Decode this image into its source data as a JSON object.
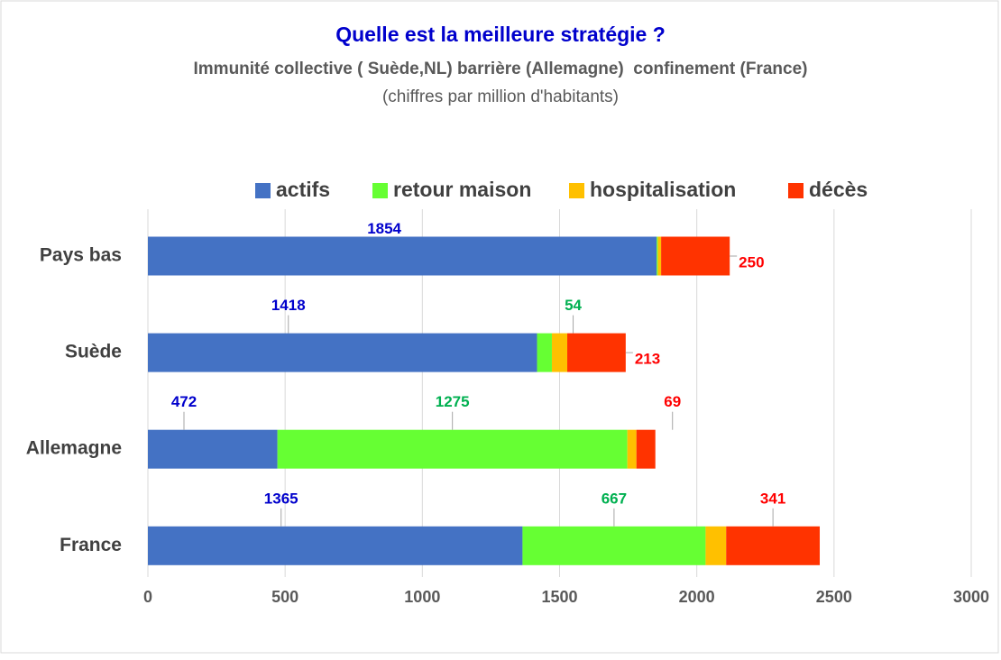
{
  "chart_data": {
    "type": "stacked_barh",
    "title": "Quelle est la meilleure stratégie ?",
    "subtitle": "Immunité collective ( Suède,NL) barrière (Allemagne)  confinement (France)",
    "subtitle2": "(chiffres par million d'habitants)",
    "categories": [
      "Pays bas",
      "Suède",
      "Allemagne",
      "France"
    ],
    "series": [
      {
        "name": "actifs",
        "color": "#4472c4",
        "label_color": "#0000cc",
        "values": [
          1854,
          1418,
          472,
          1365
        ],
        "value_labels": [
          "1854",
          "1418",
          "472",
          "1365"
        ]
      },
      {
        "name": "retour maison",
        "color": "#66ff33",
        "label_color": "#00b050",
        "values": [
          4,
          54,
          1275,
          667
        ],
        "value_labels": [
          null,
          "54",
          "1275",
          "667"
        ]
      },
      {
        "name": "hospitalisation",
        "color": "#ffc000",
        "label_color": "#c09000",
        "values": [
          12,
          56,
          33,
          75
        ],
        "value_labels": [
          null,
          null,
          null,
          null
        ]
      },
      {
        "name": "décès",
        "color": "#ff3300",
        "label_color": "#ff0000",
        "values": [
          250,
          213,
          69,
          341
        ],
        "value_labels": [
          "250",
          "213",
          "69",
          "341"
        ]
      }
    ],
    "xlim": [
      0,
      3000
    ],
    "xticks": [
      0,
      500,
      1000,
      1500,
      2000,
      2500,
      3000
    ],
    "grid": true,
    "legend": "top"
  }
}
